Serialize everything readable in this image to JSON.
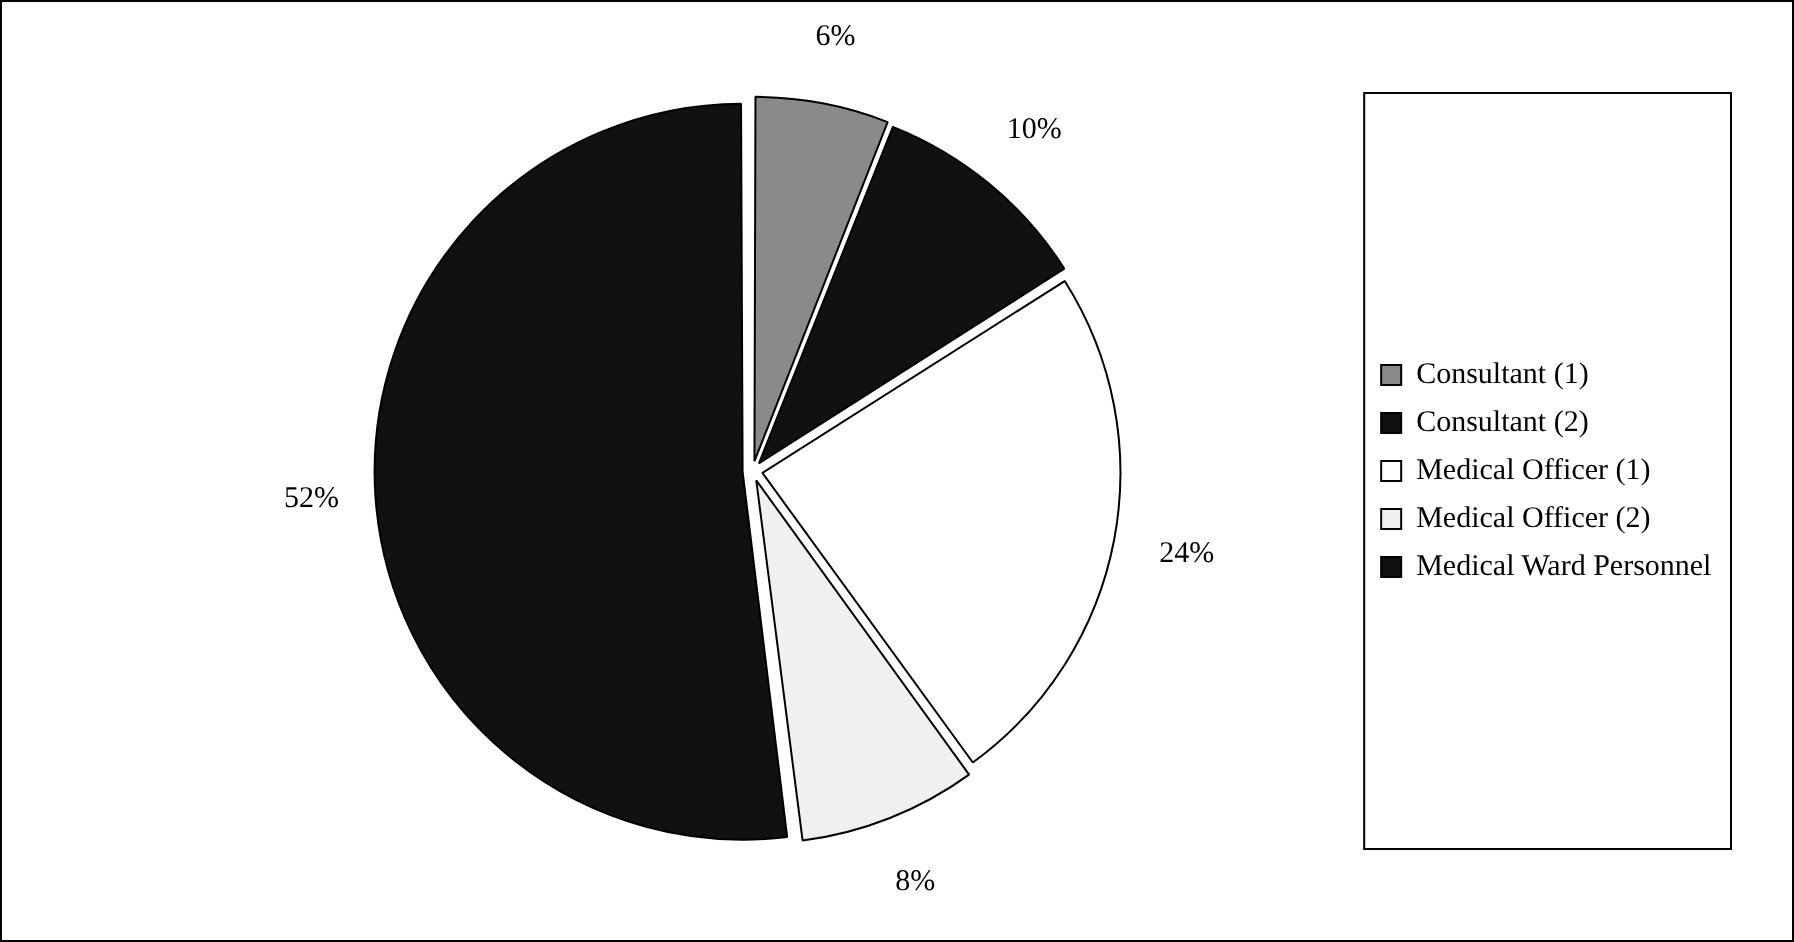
{
  "chart_data": {
    "type": "pie",
    "categories": [
      "Consultant (1)",
      "Consultant (2)",
      "Medical Officer (1)",
      "Medical Officer (2)",
      "Medical Ward Personnel"
    ],
    "values": [
      6,
      10,
      24,
      8,
      52
    ],
    "colors": [
      "#8a8a8a",
      "#111111",
      "#ffffff",
      "#f0f0f0",
      "#111111"
    ],
    "value_labels": [
      "6%",
      "10%",
      "24%",
      "8%",
      "52%"
    ],
    "legend": "right"
  }
}
